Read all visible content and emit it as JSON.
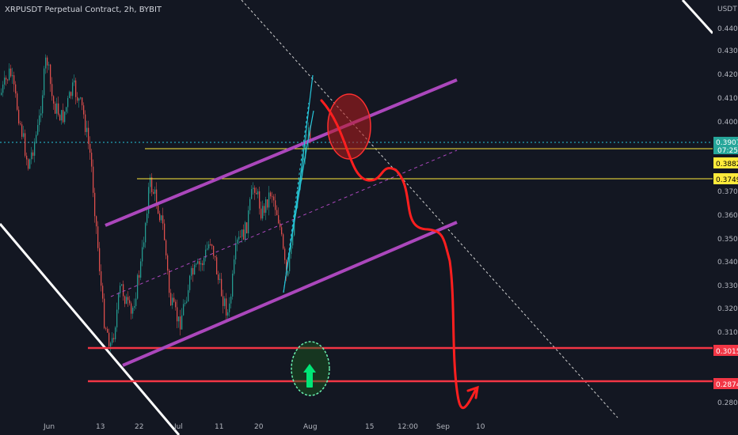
{
  "chart_data": {
    "type": "candlestick",
    "title": "XRPUSDT Perpetual Contract, 2h, BYBIT",
    "currency": "USDT",
    "x_ticks": [
      "Jun",
      "13",
      "22",
      "Jul",
      "11",
      "20",
      "Aug",
      "15",
      "12:00",
      "Sep",
      "10"
    ],
    "y_ticks": [
      "0.4400",
      "0.4300",
      "0.4200",
      "0.4100",
      "0.4000",
      "0.3700",
      "0.3600",
      "0.3500",
      "0.3400",
      "0.3300",
      "0.3200",
      "0.3100",
      "0.2800"
    ],
    "ylim": [
      0.275,
      0.455
    ],
    "last_price": "0.3907",
    "countdown": "07:25",
    "levels": [
      {
        "value": 0.3882,
        "label": "0.3882",
        "color": "#ffeb3b"
      },
      {
        "value": 0.3749,
        "label": "0.3749",
        "color": "#ffeb3b"
      },
      {
        "value": 0.3015,
        "label": "0.3015",
        "color": "#f23645"
      },
      {
        "value": 0.2874,
        "label": "0.2874",
        "color": "#f23645"
      }
    ],
    "colors": {
      "up": "#26a69a",
      "down": "#ef5350",
      "channel": "#ab47bc",
      "projection": "#ff1f1f",
      "trendline": "#ffffff",
      "last_price_line": "#26c6da"
    }
  }
}
